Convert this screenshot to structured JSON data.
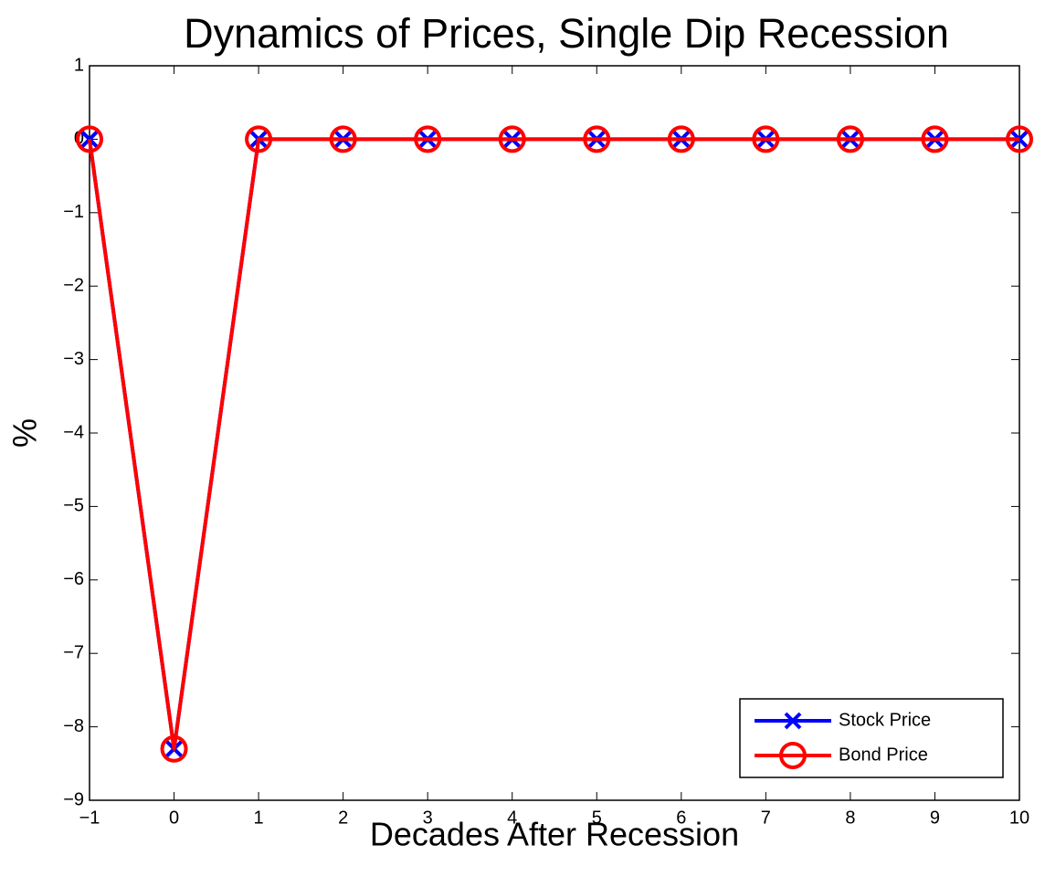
{
  "chart_data": {
    "type": "line",
    "title": "Dynamics of Prices, Single Dip Recession",
    "x_label": "Decades After Recession",
    "y_label": "%",
    "x": [
      -1,
      0,
      1,
      2,
      3,
      4,
      5,
      6,
      7,
      8,
      9,
      10
    ],
    "series": [
      {
        "name": "Stock Price",
        "color": "#0000ff",
        "marker": "x",
        "values": [
          0,
          -8.3,
          0,
          0,
          0,
          0,
          0,
          0,
          0,
          0,
          0,
          0
        ]
      },
      {
        "name": "Bond Price",
        "color": "#ff0000",
        "marker": "o",
        "values": [
          0,
          -8.3,
          0,
          0,
          0,
          0,
          0,
          0,
          0,
          0,
          0,
          0
        ]
      }
    ],
    "xlim": [
      -1,
      10
    ],
    "xticks": [
      {
        "value": -1,
        "label": "−1"
      },
      0,
      1,
      2,
      3,
      4,
      5,
      6,
      7,
      8,
      9,
      10
    ],
    "ylim": [
      -9,
      1
    ],
    "yticks": [
      {
        "value": -9,
        "label": "−9"
      },
      {
        "value": -8,
        "label": "−8"
      },
      {
        "value": -7,
        "label": "−7"
      },
      {
        "value": -6,
        "label": "−6"
      },
      {
        "value": -5,
        "label": "−5"
      },
      {
        "value": -4,
        "label": "−4"
      },
      {
        "value": -3,
        "label": "−3"
      },
      {
        "value": -2,
        "label": "−2"
      },
      {
        "value": -1,
        "label": "−1"
      },
      0,
      1
    ],
    "legend": "lower right",
    "grid": false
  }
}
